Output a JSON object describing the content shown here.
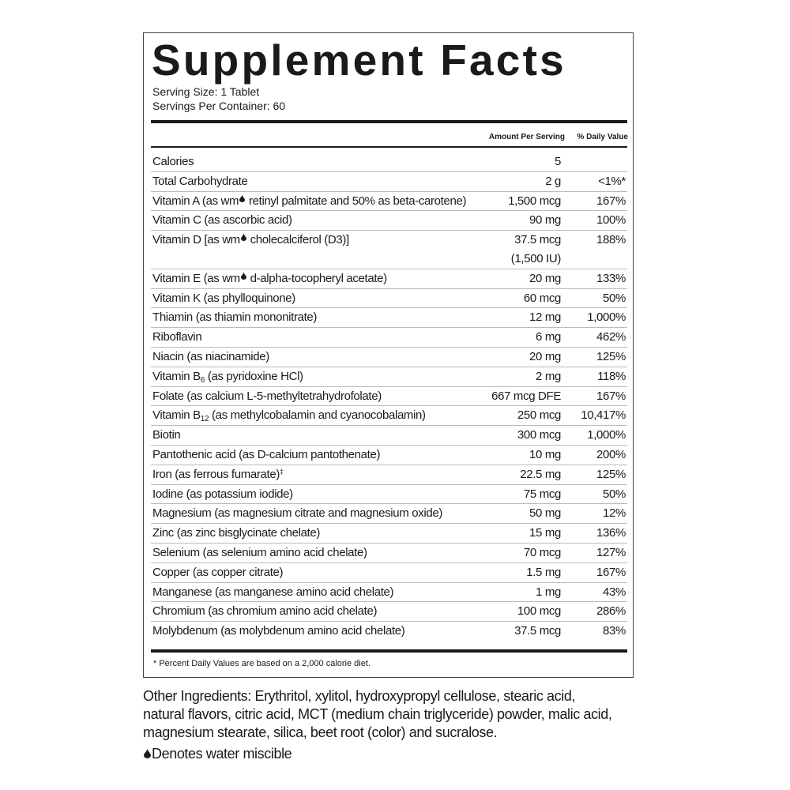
{
  "header": {
    "title": "Supplement Facts",
    "serving_size": "Serving Size: 1 Tablet",
    "servings_per_container": "Servings Per Container: 60"
  },
  "table": {
    "columns": [
      "Amount Per Serving",
      "% Daily Value"
    ],
    "rows": [
      {
        "name": [
          "Calories"
        ],
        "amount": "5",
        "dv": ""
      },
      {
        "name": [
          "Total Carbohydrate"
        ],
        "amount": "2 g",
        "dv": "<1%*"
      },
      {
        "name": [
          "Vitamin A (as wm",
          " retinyl palmitate and 50% as beta-carotene)"
        ],
        "water_miscible": true,
        "amount": "1,500 mcg",
        "dv": "167%"
      },
      {
        "name": [
          "Vitamin C (as ascorbic acid)"
        ],
        "amount": "90 mg",
        "dv": "100%"
      },
      {
        "name": [
          "Vitamin D [as wm",
          " cholecalciferol (D3)]"
        ],
        "water_miscible": true,
        "amount": "37.5 mcg",
        "amount_alt": "(1,500 IU)",
        "dv": "188%"
      },
      {
        "name": [
          "Vitamin E (as wm",
          " d-alpha-tocopheryl acetate)"
        ],
        "water_miscible": true,
        "amount": "20 mg",
        "dv": "133%"
      },
      {
        "name": [
          "Vitamin K (as phylloquinone)"
        ],
        "amount": "60 mcg",
        "dv": "50%"
      },
      {
        "name": [
          "Thiamin (as thiamin mononitrate)"
        ],
        "amount": "12 mg",
        "dv": "1,000%"
      },
      {
        "name": [
          "Riboflavin"
        ],
        "amount": "6 mg",
        "dv": "462%"
      },
      {
        "name": [
          "Niacin (as niacinamide)"
        ],
        "amount": "20 mg",
        "dv": "125%"
      },
      {
        "name": [
          "Vitamin B",
          " (as pyridoxine HCl)"
        ],
        "subscript": "6",
        "amount": "2 mg",
        "dv": "118%"
      },
      {
        "name": [
          "Folate (as calcium L-5-methyltetrahydrofolate)"
        ],
        "amount": "667 mcg DFE",
        "dv": "167%"
      },
      {
        "name": [
          "Vitamin B",
          " (as methylcobalamin and cyanocobalamin)"
        ],
        "subscript": "12",
        "amount": "250 mcg",
        "dv": "10,417%"
      },
      {
        "name": [
          "Biotin"
        ],
        "amount": "300 mcg",
        "dv": "1,000%"
      },
      {
        "name": [
          "Pantothenic acid (as D-calcium pantothenate)"
        ],
        "amount": "10 mg",
        "dv": "200%"
      },
      {
        "name": [
          "Iron (as ferrous fumarate)"
        ],
        "superscript": "‡",
        "amount": "22.5 mg",
        "dv": "125%"
      },
      {
        "name": [
          "Iodine (as potassium iodide)"
        ],
        "amount": "75 mcg",
        "dv": "50%"
      },
      {
        "name": [
          "Magnesium (as magnesium citrate and magnesium oxide)"
        ],
        "amount": "50 mg",
        "dv": "12%"
      },
      {
        "name": [
          "Zinc (as zinc bisglycinate chelate)"
        ],
        "amount": "15 mg",
        "dv": "136%"
      },
      {
        "name": [
          "Selenium (as selenium amino acid chelate)"
        ],
        "amount": "70 mcg",
        "dv": "127%"
      },
      {
        "name": [
          "Copper (as copper citrate)"
        ],
        "amount": "1.5 mg",
        "dv": "167%"
      },
      {
        "name": [
          "Manganese (as manganese amino acid chelate)"
        ],
        "amount": "1 mg",
        "dv": "43%"
      },
      {
        "name": [
          "Chromium (as chromium amino acid chelate)"
        ],
        "amount": "100 mcg",
        "dv": "286%"
      },
      {
        "name": [
          "Molybdenum (as molybdenum amino acid chelate)"
        ],
        "amount": "37.5 mcg",
        "dv": "83%"
      }
    ]
  },
  "footnote": "* Percent Daily Values are based on a 2,000 calorie diet.",
  "other_ingredients": "Other Ingredients: Erythritol, xylitol, hydroxypropyl cellulose, stearic acid, natural flavors, citric acid, MCT (medium chain triglyceride) powder, malic acid, magnesium stearate, silica, beet root (color) and sucralose.",
  "legend": "Denotes water miscible"
}
